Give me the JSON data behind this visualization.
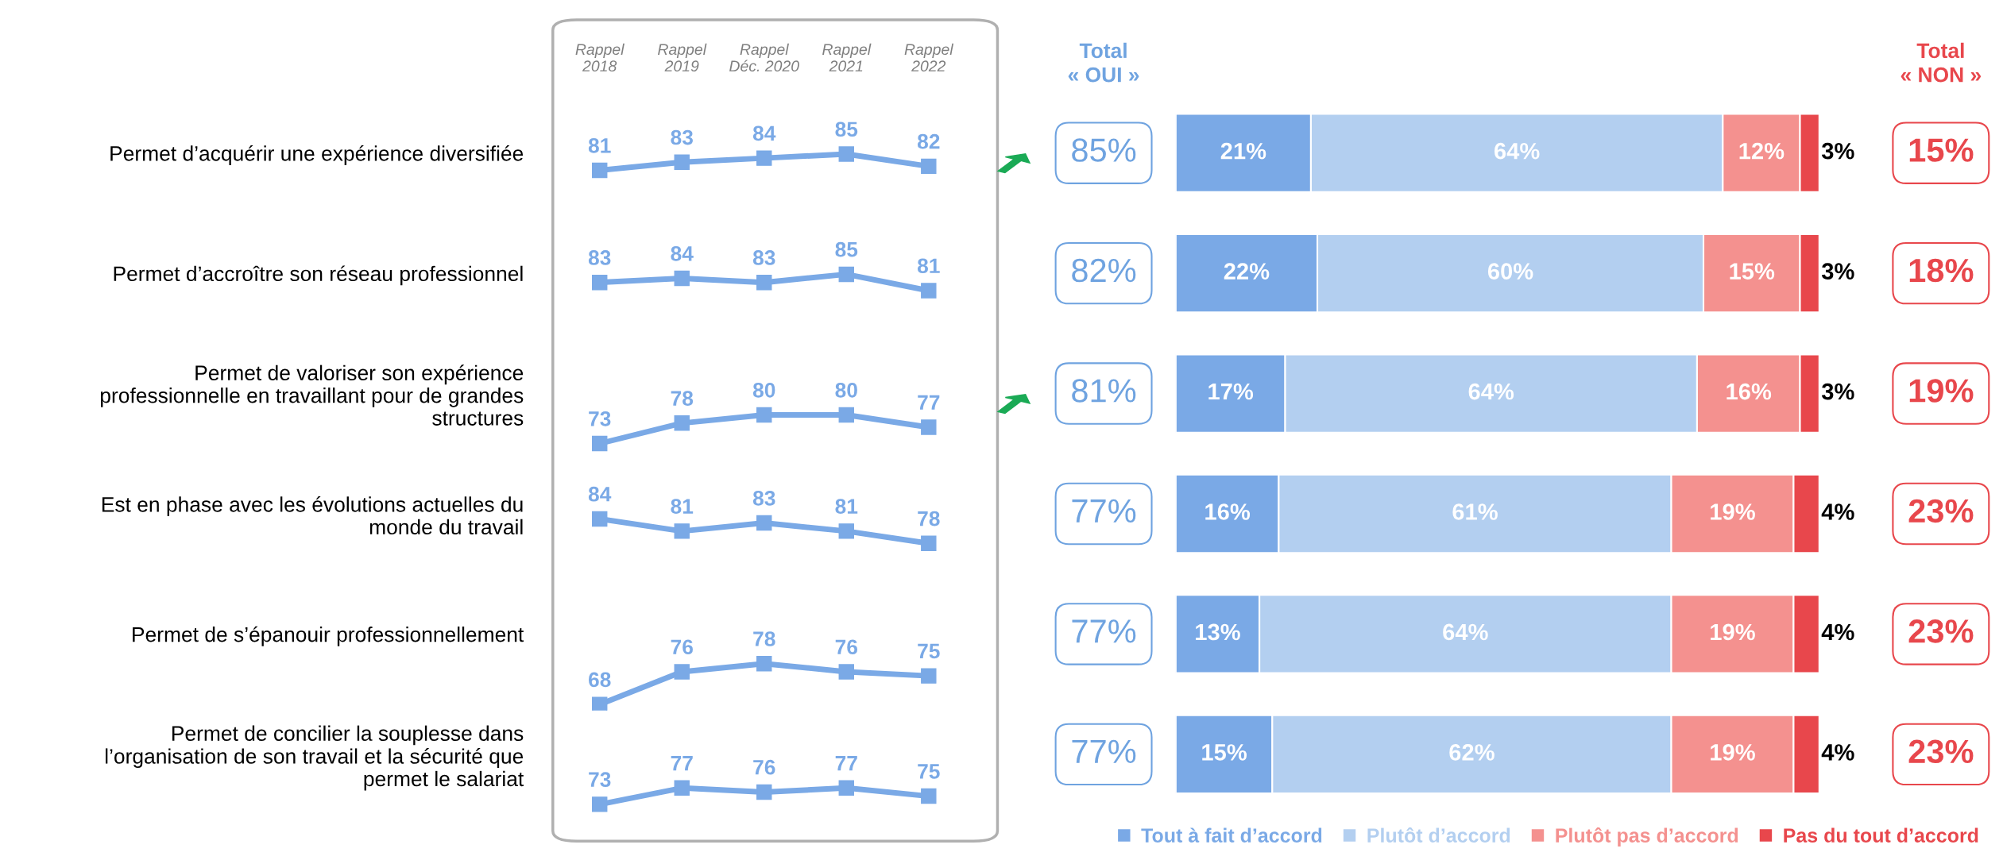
{
  "chart_data": [
    {
      "type": "line",
      "categories": [
        "Rappel\n2018",
        "Rappel\n2019",
        "Rappel\nDéc. 2020",
        "Rappel\n2021",
        "Rappel\n2022"
      ],
      "values": [
        81,
        83,
        84,
        85,
        82
      ],
      "color": "#7aa9e6",
      "marker": "square",
      "data_labels": true,
      "tick_labels": "x"
    },
    {
      "type": "line",
      "categories": [
        null,
        null,
        null,
        null,
        null
      ],
      "values": [
        83,
        84,
        83,
        85,
        81
      ],
      "color": "#7aa9e6",
      "marker": "square",
      "data_labels": true
    },
    {
      "type": "line",
      "categories": [
        null,
        null,
        null,
        null,
        null
      ],
      "values": [
        73,
        78,
        80,
        80,
        77
      ],
      "color": "#7aa9e6",
      "marker": "square",
      "data_labels": true
    },
    {
      "type": "line",
      "categories": [
        null,
        null,
        null,
        null,
        null
      ],
      "values": [
        84,
        81,
        83,
        81,
        78
      ],
      "color": "#7aa9e6",
      "marker": "square",
      "data_labels": true
    },
    {
      "type": "line",
      "categories": [
        null,
        null,
        null,
        null,
        null
      ],
      "values": [
        68,
        76,
        78,
        76,
        75
      ],
      "color": "#7aa9e6",
      "marker": "square",
      "data_labels": true
    },
    {
      "type": "line",
      "categories": [
        null,
        null,
        null,
        null,
        null
      ],
      "values": [
        73,
        77,
        76,
        77,
        75
      ],
      "color": "#7aa9e6",
      "marker": "square",
      "data_labels": true
    },
    {
      "type": "bar",
      "orientation": "horizontal",
      "stacked": true,
      "legend": "bottom",
      "categories": [
        "Permet d’acquérir une expérience diversifiée",
        "Permet d’accroître son réseau professionnel",
        "Permet de valoriser son expérience\nprofessionnelle en travaillant pour de grandes\nstructures",
        "Est en phase avec les évolutions actuelles du\nmonde du travail",
        "Permet de s’épanouir professionnellement",
        "Permet de concilier la souplesse dans\nl’organisation de son travail et la sécurité que\npermet le salariat"
      ],
      "series": [
        {
          "name": "Tout à fait d’accord",
          "color": "#7aa9e6",
          "values": [
            21,
            22,
            17,
            16,
            13,
            15
          ],
          "value_labels": [
            "21%",
            "22%",
            "17%",
            "16%",
            "13%",
            "15%"
          ]
        },
        {
          "name": "Plutôt d’accord",
          "color": "#b3cff0",
          "values": [
            64,
            60,
            64,
            61,
            64,
            62
          ],
          "value_labels": [
            "64%",
            "60%",
            "64%",
            "61%",
            "64%",
            "62%"
          ]
        },
        {
          "name": "Plutôt pas d’accord",
          "color": "#f4918f",
          "values": [
            12,
            15,
            16,
            19,
            19,
            19
          ],
          "value_labels": [
            "12%",
            "15%",
            "16%",
            "19%",
            "19%",
            "19%"
          ]
        },
        {
          "name": "Pas du tout d’accord",
          "color": "#e8474c",
          "values": [
            3,
            3,
            3,
            4,
            4,
            4
          ],
          "value_labels": [
            "3%",
            "3%",
            "3%",
            "4%",
            "4%",
            "4%"
          ]
        }
      ]
    },
    {
      "type": "other",
      "title": "Total\n« OUI »",
      "color": "#6fa3e0",
      "annotations": [
        "85%",
        "82%",
        "81%",
        "77%",
        "77%",
        "77%"
      ]
    },
    {
      "type": "other",
      "title": "Total\n« NON »",
      "color": "#e8474c",
      "annotations": [
        "15%",
        "18%",
        "19%",
        "23%",
        "23%",
        "23%"
      ]
    }
  ]
}
